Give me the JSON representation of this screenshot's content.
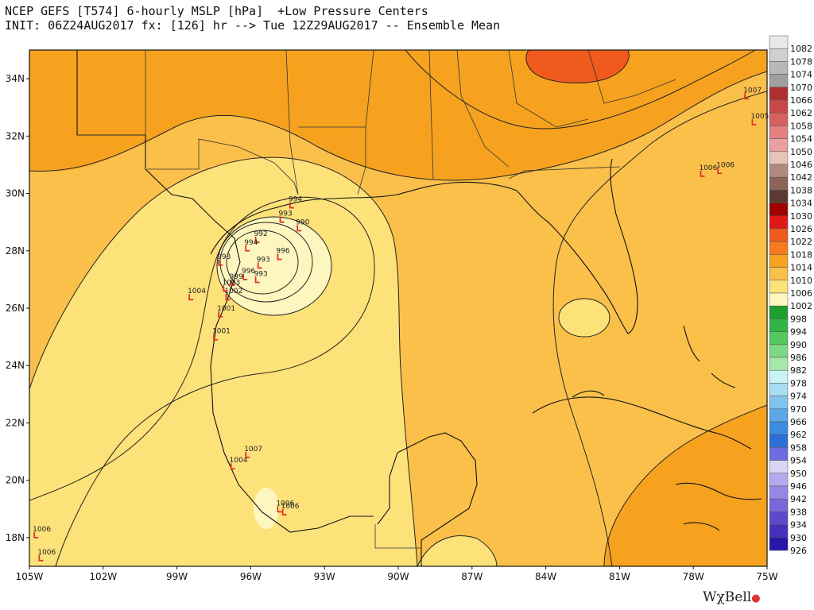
{
  "header": {
    "line1": "NCEP GEFS [T574] 6-hourly MSLP [hPa]  +Low Pressure Centers",
    "line2": "INIT: 06Z24AUG2017 fx: [126] hr --> Tue 12Z29AUG2017 -- Ensemble Mean"
  },
  "map": {
    "lat_labels": [
      "34N",
      "32N",
      "30N",
      "28N",
      "26N",
      "24N",
      "22N",
      "20N",
      "18N"
    ],
    "lon_labels": [
      "105W",
      "102W",
      "99W",
      "96W",
      "93W",
      "90W",
      "87W",
      "84W",
      "81W",
      "78W",
      "75W"
    ],
    "lat_range": [
      17,
      35
    ],
    "lon_range": [
      -105,
      -75
    ],
    "fill_colors": {
      "p1002": "#fdf6be",
      "p1006": "#fde27a",
      "p1010": "#fbc04a",
      "p1014": "#f6a21f",
      "p1018": "#f97a1e",
      "p1022": "#f05a1c"
    }
  },
  "low_centers": [
    {
      "label": "994",
      "lon": -94.4,
      "lat": 29.5
    },
    {
      "label": "993",
      "lon": -94.8,
      "lat": 29.0
    },
    {
      "label": "990",
      "lon": -94.1,
      "lat": 28.7
    },
    {
      "label": "992",
      "lon": -95.8,
      "lat": 28.3
    },
    {
      "label": "994",
      "lon": -96.2,
      "lat": 28.0
    },
    {
      "label": "996",
      "lon": -94.9,
      "lat": 27.7
    },
    {
      "label": "993",
      "lon": -95.7,
      "lat": 27.4
    },
    {
      "label": "993",
      "lon": -95.8,
      "lat": 26.9
    },
    {
      "label": "993",
      "lon": -97.3,
      "lat": 27.5
    },
    {
      "label": "996",
      "lon": -96.3,
      "lat": 27.0
    },
    {
      "label": "999",
      "lon": -96.8,
      "lat": 26.8
    },
    {
      "label": "1002",
      "lon": -97.0,
      "lat": 26.3
    },
    {
      "label": "1003",
      "lon": -97.1,
      "lat": 26.6
    },
    {
      "label": "1004",
      "lon": -98.5,
      "lat": 26.3
    },
    {
      "label": "1001",
      "lon": -97.3,
      "lat": 25.7
    },
    {
      "label": "1001",
      "lon": -97.5,
      "lat": 24.9
    },
    {
      "label": "1007",
      "lon": -96.2,
      "lat": 20.8
    },
    {
      "label": "1004",
      "lon": -96.8,
      "lat": 20.4
    },
    {
      "label": "1006",
      "lon": -94.9,
      "lat": 18.9
    },
    {
      "label": "1006",
      "lon": -94.7,
      "lat": 18.8
    },
    {
      "label": "1006",
      "lon": -104.8,
      "lat": 18.0
    },
    {
      "label": "1006",
      "lon": -104.6,
      "lat": 17.2
    },
    {
      "label": "1006",
      "lon": -77.7,
      "lat": 30.6
    },
    {
      "label": "1006",
      "lon": -77.0,
      "lat": 30.7
    },
    {
      "label": "1007",
      "lon": -75.9,
      "lat": 33.3
    },
    {
      "label": "1005",
      "lon": -75.6,
      "lat": 32.4
    }
  ],
  "colorbar": {
    "labels": [
      "1082",
      "1078",
      "1074",
      "1070",
      "1066",
      "1062",
      "1058",
      "1054",
      "1050",
      "1046",
      "1042",
      "1038",
      "1034",
      "1030",
      "1026",
      "1022",
      "1018",
      "1014",
      "1010",
      "1006",
      "1002",
      "998",
      "994",
      "990",
      "986",
      "982",
      "978",
      "974",
      "970",
      "966",
      "962",
      "958",
      "954",
      "950",
      "946",
      "942",
      "938",
      "934",
      "930",
      "926"
    ],
    "colors": [
      "#e8e8e8",
      "#d0d0d0",
      "#b8b8b8",
      "#a0a0a0",
      "#b03030",
      "#c84848",
      "#d86060",
      "#e48080",
      "#eaa0a0",
      "#e6c4b8",
      "#b08a80",
      "#8c6458",
      "#5a3a32",
      "#a00000",
      "#e01818",
      "#f05a1c",
      "#f97a1e",
      "#f6a21f",
      "#fbc04a",
      "#fde27a",
      "#fdf6be",
      "#1e9e2e",
      "#34b446",
      "#56c860",
      "#7cd884",
      "#a6e8aa",
      "#c8f4f4",
      "#a8ddf2",
      "#80c4ee",
      "#5aa8e6",
      "#3a8ce0",
      "#2a70d8",
      "#6c6ce0",
      "#d8d4f4",
      "#b4aaee",
      "#9488e4",
      "#7a68da",
      "#5e48cc",
      "#4530bc",
      "#2a16a8"
    ]
  },
  "logo": {
    "text": "WχBell",
    "mark": "●"
  }
}
